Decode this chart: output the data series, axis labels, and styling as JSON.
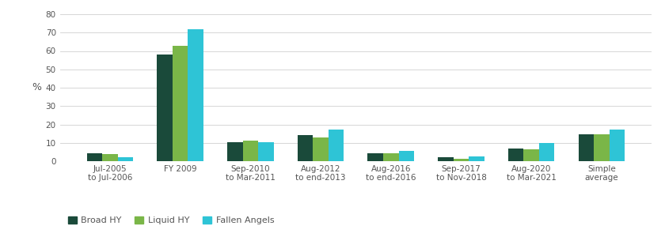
{
  "categories": [
    "Jul-2005\nto Jul-2006",
    "FY 2009",
    "Sep-2010\nto Mar-2011",
    "Aug-2012\nto end-2013",
    "Aug-2016\nto end-2016",
    "Sep-2017\nto Nov-2018",
    "Aug-2020\nto Mar-2021",
    "Simple\naverage"
  ],
  "broad_hy": [
    4.5,
    58.0,
    10.5,
    14.0,
    4.5,
    2.0,
    7.0,
    14.5
  ],
  "liquid_hy": [
    4.0,
    63.0,
    11.0,
    13.0,
    4.5,
    1.5,
    6.5,
    14.5
  ],
  "fallen_angels": [
    2.0,
    72.0,
    10.5,
    17.0,
    5.5,
    2.5,
    10.0,
    17.0
  ],
  "broad_hy_color": "#1a4a3a",
  "liquid_hy_color": "#7ab648",
  "fallen_angels_color": "#2ec4d6",
  "ylabel": "%",
  "ylim": [
    0,
    80
  ],
  "yticks": [
    0,
    10,
    20,
    30,
    40,
    50,
    60,
    70,
    80
  ],
  "grid_color": "#d0d0d0",
  "background_color": "#ffffff",
  "legend_labels": [
    "Broad HY",
    "Liquid HY",
    "Fallen Angels"
  ],
  "bar_width": 0.22,
  "tick_fontsize": 7.5,
  "legend_fontsize": 8,
  "ylabel_fontsize": 9
}
